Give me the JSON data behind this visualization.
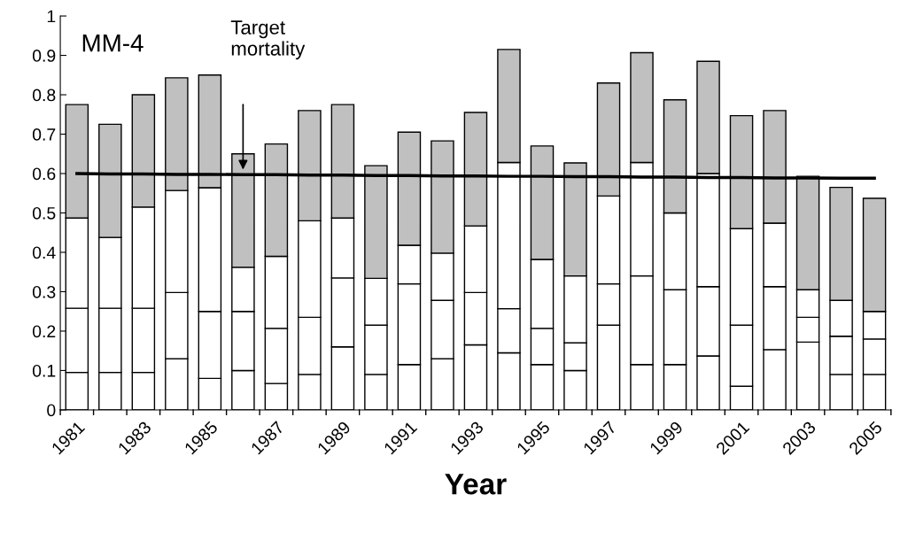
{
  "chart_data": {
    "type": "bar",
    "stacked": true,
    "title": "MM-4",
    "xlabel": "Year",
    "categories": [
      "1981",
      null,
      "1983",
      null,
      "1985",
      null,
      "1987",
      null,
      "1989",
      null,
      "1991",
      null,
      "1993",
      null,
      "1995",
      null,
      "1997",
      null,
      "1999",
      null,
      "2001",
      null,
      "2003",
      null,
      "2005"
    ],
    "series": [
      {
        "color": "#ffffff",
        "values": [
          0.095,
          0.095,
          0.095,
          0.13,
          0.08,
          0.1,
          0.067,
          0.09,
          0.16,
          0.09,
          0.115,
          0.13,
          0.165,
          0.145,
          0.115,
          0.1,
          0.215,
          0.115,
          0.115,
          0.137,
          0.06,
          0.153,
          0.172,
          0.09,
          0.09
        ]
      },
      {
        "color": "#ffffff",
        "values": [
          0.163,
          0.163,
          0.163,
          0.168,
          0.17,
          0.15,
          0.14,
          0.145,
          0.175,
          0.125,
          0.205,
          0.148,
          0.133,
          0.112,
          0.092,
          0.07,
          0.105,
          0.225,
          0.19,
          0.176,
          0.155,
          0.16,
          0.063,
          0.097,
          0.09
        ]
      },
      {
        "color": "#ffffff",
        "values": [
          0.229,
          0.18,
          0.257,
          0.259,
          0.314,
          0.112,
          0.183,
          0.245,
          0.152,
          0.119,
          0.098,
          0.12,
          0.169,
          0.371,
          0.175,
          0.17,
          0.223,
          0.288,
          0.195,
          0.287,
          0.245,
          0.161,
          0.07,
          0.091,
          0.07
        ]
      },
      {
        "color": "#c0c0c0",
        "values": [
          0.288,
          0.287,
          0.285,
          0.286,
          0.286,
          0.288,
          0.285,
          0.28,
          0.288,
          0.286,
          0.287,
          0.285,
          0.288,
          0.287,
          0.288,
          0.287,
          0.287,
          0.279,
          0.287,
          0.285,
          0.287,
          0.286,
          0.288,
          0.287,
          0.287
        ]
      },
      {
        "type": "line",
        "color": "#000000",
        "values": [
          0.6,
          0.599,
          0.599,
          0.598,
          0.598,
          0.597,
          0.597,
          0.596,
          0.596,
          0.595,
          0.595,
          0.594,
          0.594,
          0.593,
          0.593,
          0.592,
          0.592,
          0.591,
          0.591,
          0.59,
          0.59,
          0.589,
          0.589,
          0.588,
          0.588
        ]
      }
    ],
    "annotations": [
      "Target\nmortality"
    ],
    "ylim": [
      0,
      1
    ],
    "yticks": [
      0,
      0.1,
      0.2,
      0.3,
      0.4,
      0.5,
      0.6,
      0.7,
      0.8,
      0.9,
      1
    ],
    "grid": false
  }
}
